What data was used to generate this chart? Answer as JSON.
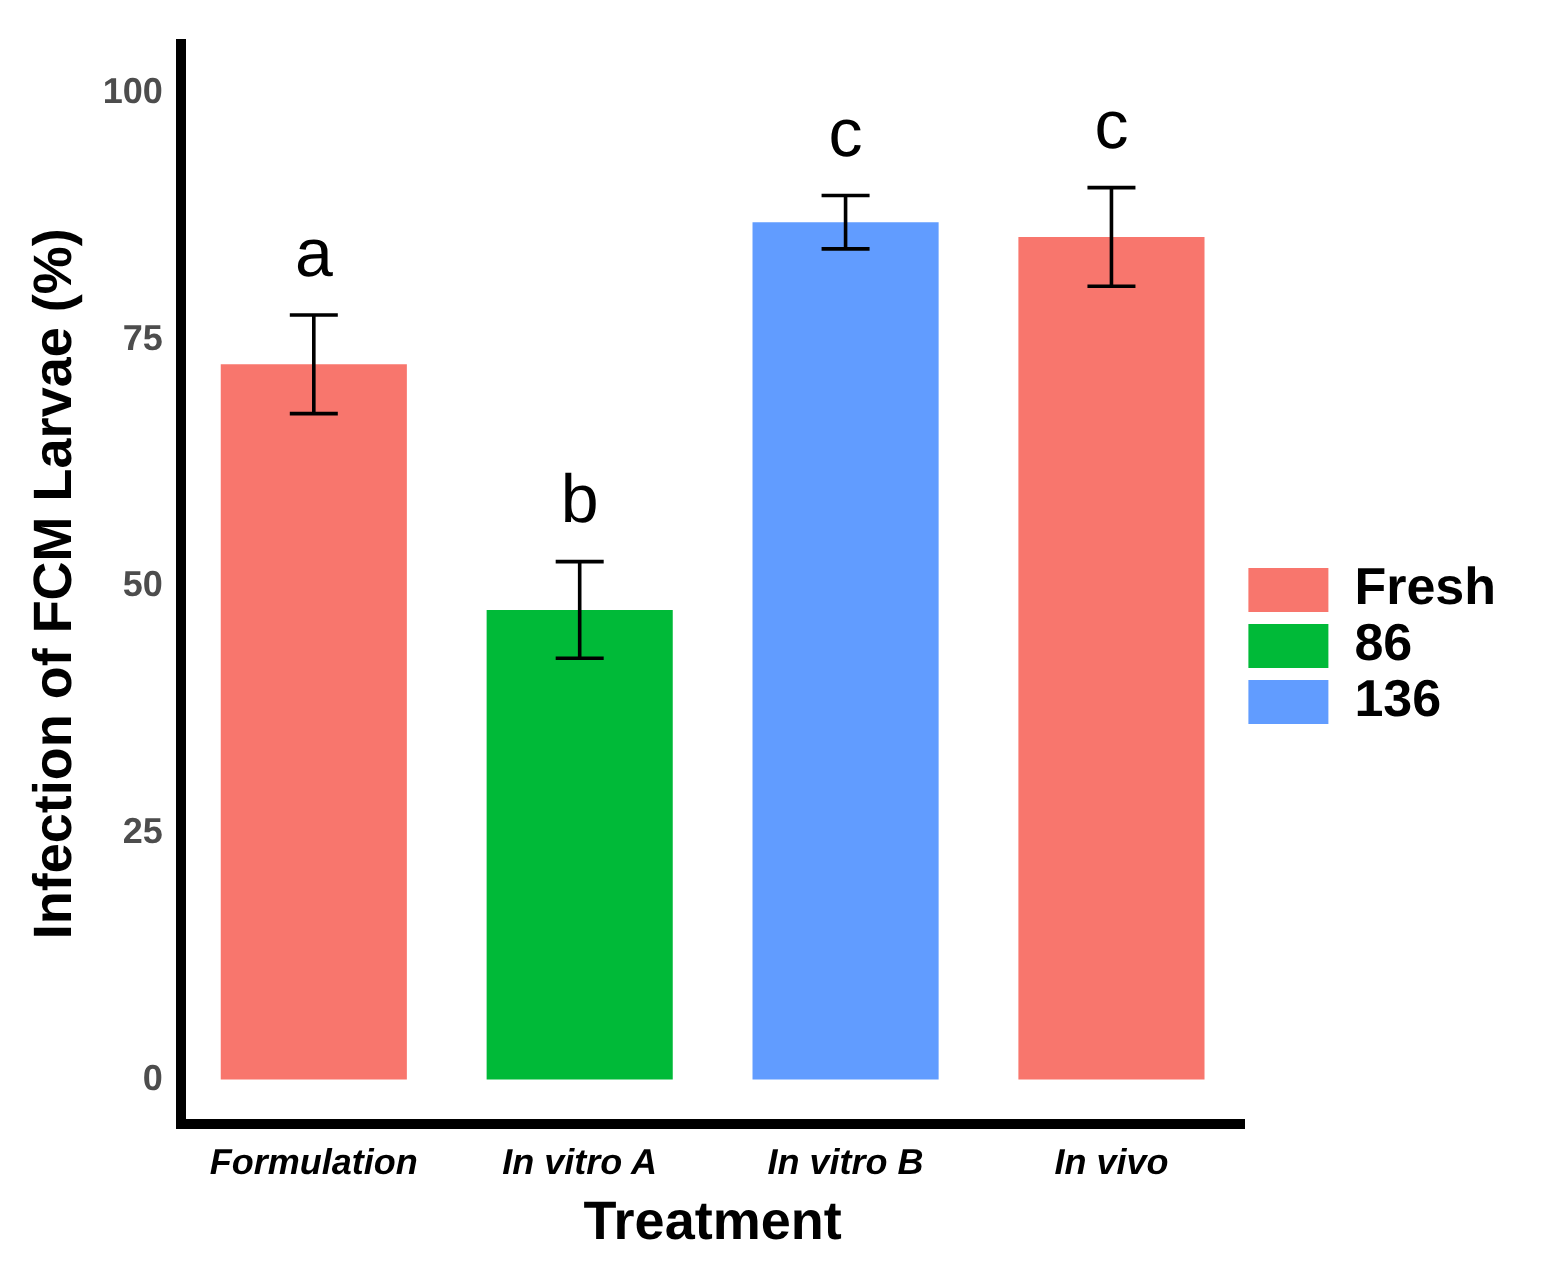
{
  "chart_data": {
    "type": "bar",
    "xlabel": "Treatment",
    "ylabel": "Infection of FCM Larvae (%)",
    "categories": [
      "Formulation",
      "In vitro A",
      "In vitro B",
      "In vivo"
    ],
    "series": [
      {
        "name": "Fresh",
        "color": "#f8766d",
        "values": [
          72.5,
          null,
          null,
          85.4
        ],
        "errors": [
          5,
          null,
          null,
          5
        ]
      },
      {
        "name": "86",
        "color": "#00ba38",
        "values": [
          null,
          47.6,
          null,
          null
        ],
        "errors": [
          null,
          4.9,
          null,
          null
        ]
      },
      {
        "name": "136",
        "color": "#619cff",
        "values": [
          null,
          null,
          86.9,
          null
        ],
        "errors": [
          null,
          null,
          2.7,
          null
        ]
      }
    ],
    "ylim": [
      -4.5,
      105
    ],
    "yticks": [
      0,
      25,
      50,
      75,
      100
    ],
    "grid": false,
    "legend": "right",
    "annotations": [
      "a",
      "b",
      "c",
      "c"
    ]
  }
}
